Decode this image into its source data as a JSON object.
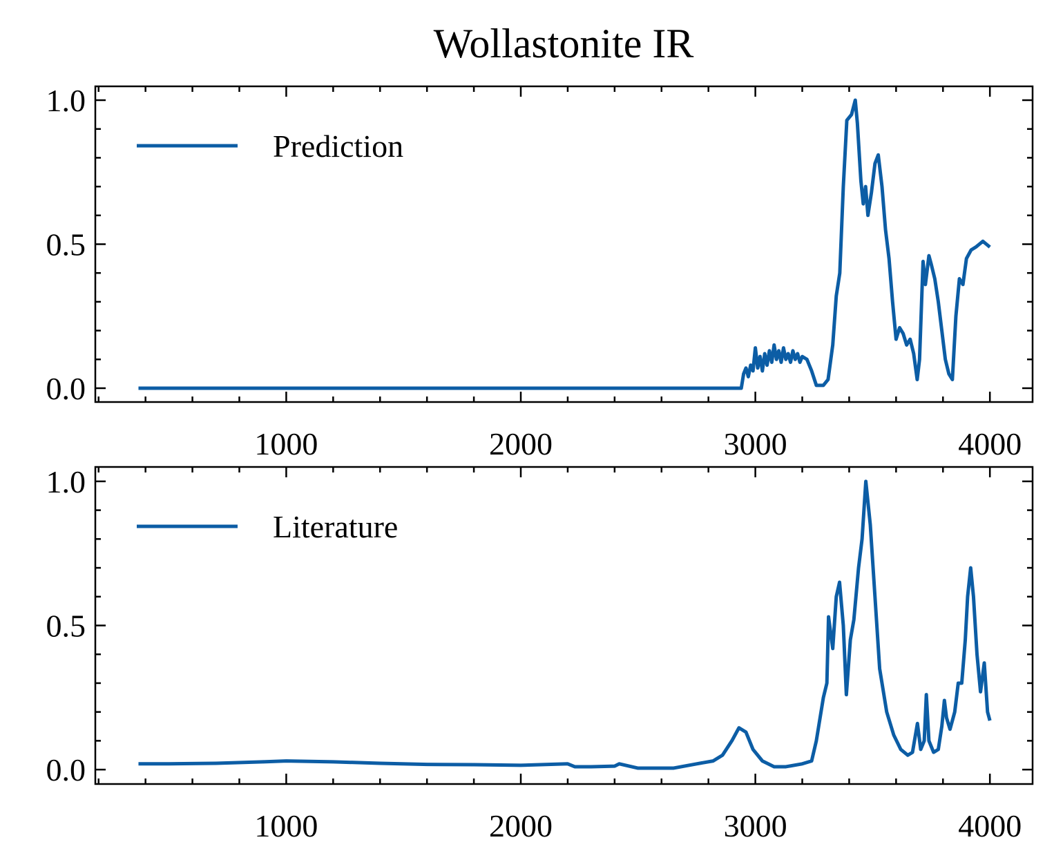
{
  "title": "Wollastonite IR",
  "chart_data": [
    {
      "type": "line",
      "x": [
        370,
        2940,
        2950,
        2960,
        2970,
        2980,
        2990,
        3000,
        3010,
        3020,
        3030,
        3040,
        3050,
        3060,
        3070,
        3080,
        3090,
        3100,
        3110,
        3120,
        3130,
        3140,
        3150,
        3160,
        3170,
        3180,
        3190,
        3200,
        3220,
        3240,
        3260,
        3290,
        3310,
        3330,
        3345,
        3360,
        3375,
        3390,
        3410,
        3426,
        3435,
        3450,
        3460,
        3470,
        3480,
        3495,
        3510,
        3524,
        3540,
        3555,
        3570,
        3585,
        3600,
        3615,
        3630,
        3645,
        3660,
        3675,
        3690,
        3700,
        3715,
        3725,
        3740,
        3750,
        3765,
        3780,
        3795,
        3810,
        3825,
        3840,
        3855,
        3870,
        3885,
        3900,
        3920,
        3940,
        3955,
        3970,
        3985,
        4000
      ],
      "series": [
        {
          "name": "Prediction",
          "color": "#0C5DA5",
          "values": [
            0,
            0,
            0.05,
            0.07,
            0.04,
            0.08,
            0.06,
            0.14,
            0.07,
            0.11,
            0.06,
            0.12,
            0.08,
            0.13,
            0.09,
            0.15,
            0.1,
            0.13,
            0.09,
            0.14,
            0.1,
            0.12,
            0.09,
            0.13,
            0.1,
            0.12,
            0.09,
            0.11,
            0.1,
            0.06,
            0.01,
            0.01,
            0.03,
            0.15,
            0.32,
            0.4,
            0.7,
            0.93,
            0.95,
            1.0,
            0.92,
            0.72,
            0.64,
            0.7,
            0.6,
            0.68,
            0.78,
            0.81,
            0.7,
            0.55,
            0.45,
            0.3,
            0.17,
            0.21,
            0.19,
            0.15,
            0.17,
            0.12,
            0.03,
            0.1,
            0.44,
            0.36,
            0.46,
            0.43,
            0.38,
            0.3,
            0.2,
            0.1,
            0.05,
            0.03,
            0.25,
            0.38,
            0.36,
            0.45,
            0.48,
            0.49,
            0.5,
            0.51,
            0.5,
            0.49
          ]
        }
      ],
      "xlim": [
        186,
        4182
      ],
      "ylim": [
        -0.048,
        1.048
      ],
      "xticks": [
        1000,
        2000,
        3000,
        4000
      ],
      "yticks": [
        {
          "value": 0,
          "label": "0.0"
        },
        0.5,
        {
          "value": 1,
          "label": "1.0"
        }
      ],
      "xminorticks": [
        200,
        400,
        600,
        800,
        1200,
        1400,
        1600,
        1800,
        2200,
        2400,
        2600,
        2800,
        3200,
        3400,
        3600,
        3800
      ],
      "yminorticks": [
        0.1,
        0.2,
        0.3,
        0.4,
        0.6,
        0.7,
        0.8,
        0.9
      ],
      "legend": "upper left"
    },
    {
      "type": "line",
      "x": [
        370,
        500,
        700,
        900,
        1000,
        1200,
        1400,
        1600,
        1800,
        2000,
        2200,
        2230,
        2300,
        2400,
        2420,
        2500,
        2650,
        2750,
        2820,
        2860,
        2900,
        2930,
        2960,
        2990,
        3030,
        3080,
        3130,
        3200,
        3240,
        3260,
        3290,
        3305,
        3312,
        3330,
        3345,
        3359,
        3375,
        3388,
        3405,
        3420,
        3440,
        3455,
        3471,
        3490,
        3510,
        3530,
        3560,
        3590,
        3620,
        3650,
        3670,
        3691,
        3705,
        3720,
        3729,
        3740,
        3760,
        3780,
        3795,
        3806,
        3815,
        3830,
        3850,
        3865,
        3880,
        3895,
        3905,
        3918,
        3930,
        3945,
        3960,
        3976,
        3990,
        4000
      ],
      "series": [
        {
          "name": "Literature",
          "color": "#0C5DA5",
          "values": [
            0.02,
            0.02,
            0.022,
            0.027,
            0.03,
            0.027,
            0.022,
            0.018,
            0.017,
            0.015,
            0.02,
            0.01,
            0.01,
            0.012,
            0.02,
            0.005,
            0.005,
            0.02,
            0.03,
            0.05,
            0.1,
            0.145,
            0.13,
            0.07,
            0.03,
            0.01,
            0.01,
            0.02,
            0.03,
            0.1,
            0.25,
            0.3,
            0.53,
            0.42,
            0.6,
            0.65,
            0.5,
            0.26,
            0.45,
            0.52,
            0.7,
            0.8,
            1.0,
            0.85,
            0.6,
            0.35,
            0.2,
            0.12,
            0.07,
            0.05,
            0.06,
            0.16,
            0.07,
            0.1,
            0.26,
            0.1,
            0.06,
            0.07,
            0.15,
            0.24,
            0.18,
            0.14,
            0.2,
            0.3,
            0.3,
            0.45,
            0.6,
            0.7,
            0.6,
            0.4,
            0.27,
            0.37,
            0.2,
            0.17
          ]
        }
      ],
      "xlim": [
        186,
        4182
      ],
      "ylim": [
        -0.05,
        1.05
      ],
      "xticks": [
        1000,
        2000,
        3000,
        4000
      ],
      "yticks": [
        {
          "value": 0,
          "label": "0.0"
        },
        0.5,
        {
          "value": 1,
          "label": "1.0"
        }
      ],
      "xminorticks": [
        200,
        400,
        600,
        800,
        1200,
        1400,
        1600,
        1800,
        2200,
        2400,
        2600,
        2800,
        3200,
        3400,
        3600,
        3800
      ],
      "yminorticks": [
        0.1,
        0.2,
        0.3,
        0.4,
        0.6,
        0.7,
        0.8,
        0.9
      ],
      "legend": "upper left"
    }
  ]
}
